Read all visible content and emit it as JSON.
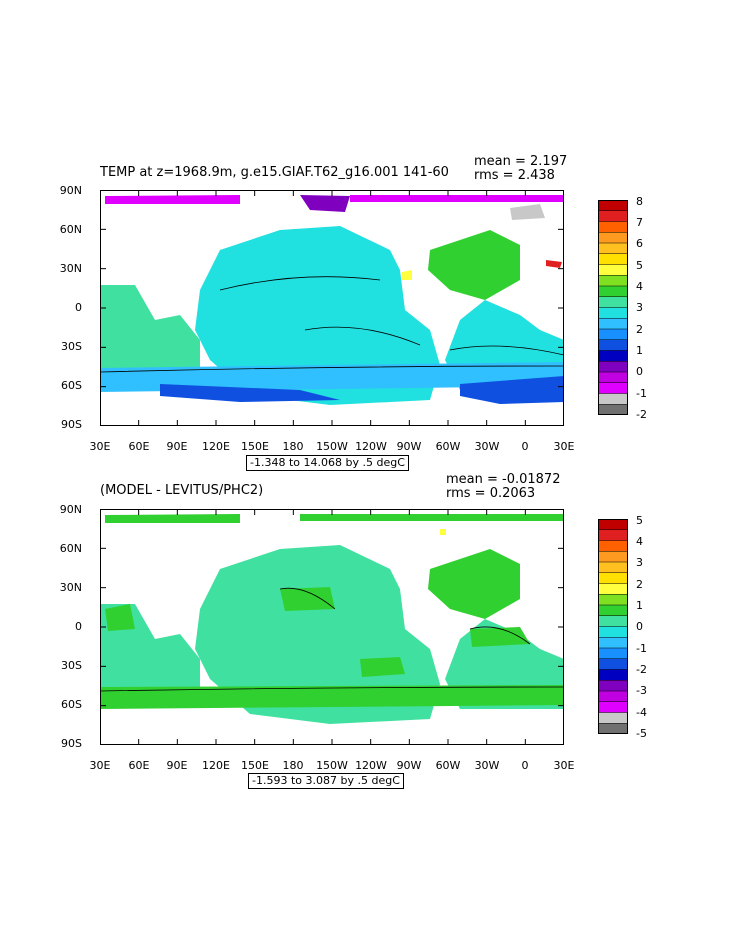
{
  "chart_data": [
    {
      "type": "heatmap",
      "title": "TEMP at z=1968.9m, g.e15.GIAF.T62_g16.001 141-60",
      "stats": {
        "mean": "mean = 2.197",
        "rms": "rms = 2.438"
      },
      "range_label": "-1.348 to 14.068 by .5 degC",
      "lat_ticks": [
        "90N",
        "60N",
        "30N",
        "0",
        "30S",
        "60S",
        "90S"
      ],
      "lon_ticks": [
        "30E",
        "60E",
        "90E",
        "120E",
        "150E",
        "180",
        "150W",
        "120W",
        "90W",
        "60W",
        "30W",
        "0",
        "30E"
      ],
      "colorbar": {
        "labels": [
          "8",
          "7",
          "6",
          "5",
          "4",
          "3",
          "2",
          "1",
          "0",
          "-1",
          "-2"
        ],
        "colors": [
          "#c00000",
          "#e02020",
          "#ff6000",
          "#ff9a20",
          "#ffc020",
          "#ffe000",
          "#ffff40",
          "#7ee020",
          "#30d030",
          "#40e0a0",
          "#20e0e0",
          "#30c0ff",
          "#1890ff",
          "#1050e0",
          "#0000c0",
          "#8000c0",
          "#c000e0",
          "#e000ff",
          "#c8c8c8",
          "#707070"
        ]
      }
    },
    {
      "type": "heatmap",
      "title": "(MODEL - LEVITUS/PHC2)",
      "stats": {
        "mean": "mean = -0.01872",
        "rms": "rms = 0.2063"
      },
      "range_label": "-1.593 to 3.087 by .5 degC",
      "lat_ticks": [
        "90N",
        "60N",
        "30N",
        "0",
        "30S",
        "60S",
        "90S"
      ],
      "lon_ticks": [
        "30E",
        "60E",
        "90E",
        "120E",
        "150E",
        "180",
        "150W",
        "120W",
        "90W",
        "60W",
        "30W",
        "0",
        "30E"
      ],
      "colorbar": {
        "labels": [
          "5",
          "4",
          "3",
          "2",
          "1",
          "0",
          "-1",
          "-2",
          "-3",
          "-4",
          "-5"
        ],
        "colors": [
          "#c00000",
          "#e02020",
          "#ff6000",
          "#ff9a20",
          "#ffc020",
          "#ffe000",
          "#ffff40",
          "#7ee020",
          "#30d030",
          "#40e0a0",
          "#20e0e0",
          "#30c0ff",
          "#1890ff",
          "#1050e0",
          "#0000c0",
          "#8000c0",
          "#c000e0",
          "#e000ff",
          "#c8c8c8",
          "#707070"
        ]
      }
    }
  ]
}
